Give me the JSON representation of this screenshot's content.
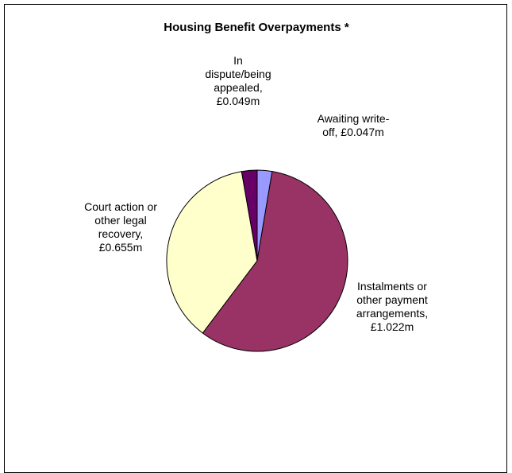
{
  "chart_data": {
    "type": "pie",
    "title": "Housing Benefit Overpayments *",
    "slices": [
      {
        "label_lines": [
          "Awaiting write-",
          "off, £0.047m"
        ],
        "category": "Awaiting write-off",
        "value": 0.047,
        "unit": "£m",
        "color": "#9999ff"
      },
      {
        "label_lines": [
          "Instalments or",
          "other payment",
          "arrangements,",
          "£1.022m"
        ],
        "category": "Instalments or other payment arrangements",
        "value": 1.022,
        "unit": "£m",
        "color": "#993366"
      },
      {
        "label_lines": [
          "Court action or",
          "other legal",
          "recovery,",
          "£0.655m"
        ],
        "category": "Court action or other legal recovery",
        "value": 0.655,
        "unit": "£m",
        "color": "#ffffcc"
      },
      {
        "label_lines": [
          "In",
          "dispute/being",
          "appealed,",
          "£0.049m"
        ],
        "category": "In dispute/being appealed",
        "value": 0.049,
        "unit": "£m",
        "color": "#660066"
      }
    ],
    "start_angle_deg": 0,
    "direction": "clockwise",
    "slice_border_color": "#000000"
  }
}
